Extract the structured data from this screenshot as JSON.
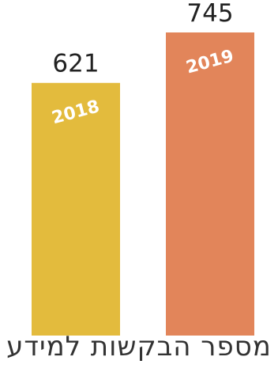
{
  "chart_data": {
    "type": "bar",
    "categories": [
      "2018",
      "2019"
    ],
    "values": [
      621,
      745
    ],
    "value_labels": [
      "621",
      "745"
    ],
    "xlabel": "מספר הבקשות למידע",
    "ylabel": "",
    "ylim": [
      0,
      745
    ],
    "grid": false,
    "legend": "none",
    "colors": [
      "#e3bb3d",
      "#e2855a"
    ]
  }
}
